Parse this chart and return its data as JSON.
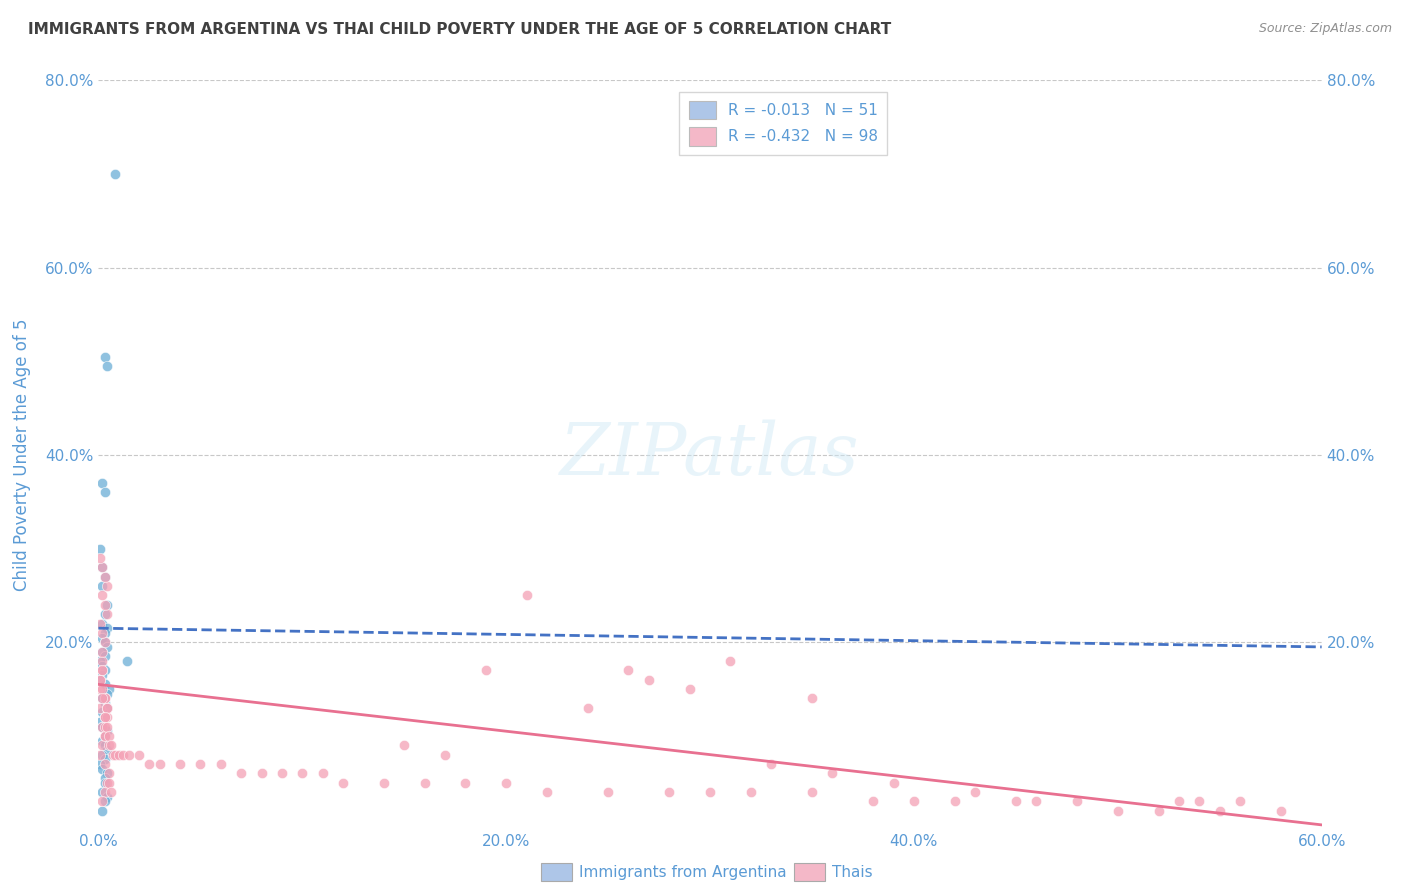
{
  "title": "IMMIGRANTS FROM ARGENTINA VS THAI CHILD POVERTY UNDER THE AGE OF 5 CORRELATION CHART",
  "source": "Source: ZipAtlas.com",
  "ylabel": "Child Poverty Under the Age of 5",
  "xlim": [
    0,
    0.6
  ],
  "ylim": [
    0,
    0.8
  ],
  "xtick_labels": [
    "0.0%",
    "",
    "20.0%",
    "",
    "40.0%",
    "",
    "60.0%"
  ],
  "xtick_vals": [
    0,
    0.1,
    0.2,
    0.3,
    0.4,
    0.5,
    0.6
  ],
  "ytick_labels": [
    "20.0%",
    "40.0%",
    "60.0%",
    "80.0%"
  ],
  "ytick_vals": [
    0.2,
    0.4,
    0.6,
    0.8
  ],
  "legend_label1": "R = -0.013   N = 51",
  "legend_label2": "R = -0.432   N = 98",
  "legend_color1": "#aec6e8",
  "legend_color2": "#f4b8c8",
  "scatter1_color": "#6baed6",
  "scatter2_color": "#f4a0b5",
  "line1_color": "#4472c4",
  "line2_color": "#e87090",
  "background_color": "#ffffff",
  "grid_color": "#c8c8c8",
  "title_color": "#404040",
  "axis_label_color": "#5b9bd5",
  "tick_label_color": "#5b9bd5",
  "line1_start_y": 0.215,
  "line1_end_y": 0.195,
  "line2_start_y": 0.155,
  "line2_end_y": 0.005,
  "argentina_x": [
    0.008,
    0.003,
    0.004,
    0.002,
    0.003,
    0.001,
    0.002,
    0.003,
    0.002,
    0.004,
    0.003,
    0.002,
    0.004,
    0.003,
    0.002,
    0.003,
    0.004,
    0.002,
    0.003,
    0.001,
    0.002,
    0.003,
    0.002,
    0.001,
    0.003,
    0.005,
    0.004,
    0.002,
    0.003,
    0.004,
    0.002,
    0.003,
    0.001,
    0.002,
    0.004,
    0.003,
    0.002,
    0.003,
    0.004,
    0.002,
    0.003,
    0.001,
    0.002,
    0.004,
    0.003,
    0.014,
    0.003,
    0.002,
    0.004,
    0.003,
    0.002
  ],
  "argentina_y": [
    0.7,
    0.505,
    0.495,
    0.37,
    0.36,
    0.3,
    0.28,
    0.27,
    0.26,
    0.24,
    0.23,
    0.22,
    0.215,
    0.21,
    0.205,
    0.2,
    0.195,
    0.19,
    0.185,
    0.18,
    0.175,
    0.17,
    0.165,
    0.16,
    0.155,
    0.15,
    0.145,
    0.14,
    0.135,
    0.13,
    0.125,
    0.12,
    0.115,
    0.11,
    0.105,
    0.1,
    0.095,
    0.09,
    0.085,
    0.08,
    0.075,
    0.07,
    0.065,
    0.06,
    0.055,
    0.18,
    0.05,
    0.04,
    0.035,
    0.03,
    0.02
  ],
  "thai_x": [
    0.001,
    0.002,
    0.001,
    0.002,
    0.003,
    0.002,
    0.003,
    0.001,
    0.002,
    0.003,
    0.001,
    0.002,
    0.003,
    0.004,
    0.002,
    0.003,
    0.001,
    0.002,
    0.003,
    0.004,
    0.005,
    0.003,
    0.004,
    0.002,
    0.003,
    0.001,
    0.002,
    0.005,
    0.006,
    0.004,
    0.003,
    0.004,
    0.002,
    0.001,
    0.003,
    0.002,
    0.004,
    0.003,
    0.005,
    0.002,
    0.003,
    0.004,
    0.005,
    0.006,
    0.007,
    0.008,
    0.01,
    0.012,
    0.015,
    0.02,
    0.025,
    0.03,
    0.04,
    0.05,
    0.06,
    0.07,
    0.08,
    0.09,
    0.1,
    0.11,
    0.12,
    0.14,
    0.16,
    0.18,
    0.2,
    0.22,
    0.25,
    0.28,
    0.3,
    0.32,
    0.35,
    0.38,
    0.4,
    0.42,
    0.45,
    0.48,
    0.5,
    0.52,
    0.55,
    0.58,
    0.26,
    0.31,
    0.27,
    0.19,
    0.29,
    0.35,
    0.21,
    0.24,
    0.46,
    0.43,
    0.39,
    0.36,
    0.33,
    0.56,
    0.54,
    0.15,
    0.17,
    0.53
  ],
  "thai_y": [
    0.15,
    0.17,
    0.16,
    0.18,
    0.14,
    0.19,
    0.2,
    0.13,
    0.21,
    0.12,
    0.22,
    0.11,
    0.1,
    0.23,
    0.09,
    0.24,
    0.08,
    0.25,
    0.07,
    0.26,
    0.06,
    0.27,
    0.05,
    0.28,
    0.04,
    0.29,
    0.03,
    0.05,
    0.04,
    0.13,
    0.14,
    0.12,
    0.15,
    0.16,
    0.11,
    0.17,
    0.13,
    0.1,
    0.09,
    0.14,
    0.12,
    0.11,
    0.1,
    0.09,
    0.08,
    0.08,
    0.08,
    0.08,
    0.08,
    0.08,
    0.07,
    0.07,
    0.07,
    0.07,
    0.07,
    0.06,
    0.06,
    0.06,
    0.06,
    0.06,
    0.05,
    0.05,
    0.05,
    0.05,
    0.05,
    0.04,
    0.04,
    0.04,
    0.04,
    0.04,
    0.04,
    0.03,
    0.03,
    0.03,
    0.03,
    0.03,
    0.02,
    0.02,
    0.02,
    0.02,
    0.17,
    0.18,
    0.16,
    0.17,
    0.15,
    0.14,
    0.25,
    0.13,
    0.03,
    0.04,
    0.05,
    0.06,
    0.07,
    0.03,
    0.03,
    0.09,
    0.08,
    0.03
  ]
}
